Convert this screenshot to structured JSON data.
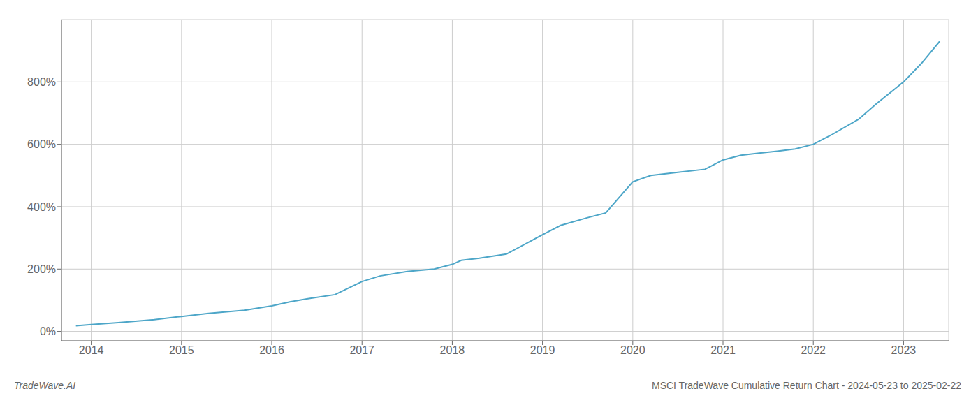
{
  "chart_data": {
    "type": "line",
    "title": "MSCI TradeWave Cumulative Return Chart - 2024-05-23 to 2025-02-22",
    "annotations": [
      "TradeWave.AI"
    ],
    "color": "#4da6c8",
    "x": [
      2013.83,
      2014.0,
      2014.3,
      2014.7,
      2015.0,
      2015.3,
      2015.7,
      2016.0,
      2016.2,
      2016.4,
      2016.7,
      2017.0,
      2017.2,
      2017.5,
      2017.8,
      2018.0,
      2018.1,
      2018.3,
      2018.6,
      2019.0,
      2019.2,
      2019.5,
      2019.7,
      2020.0,
      2020.2,
      2020.5,
      2020.8,
      2021.0,
      2021.2,
      2021.4,
      2021.6,
      2021.8,
      2022.0,
      2022.2,
      2022.5,
      2022.7,
      2023.0,
      2023.2,
      2023.4
    ],
    "values": [
      18,
      22,
      28,
      38,
      48,
      58,
      68,
      82,
      95,
      105,
      118,
      160,
      178,
      192,
      200,
      215,
      228,
      235,
      248,
      310,
      340,
      365,
      380,
      480,
      500,
      510,
      520,
      550,
      565,
      572,
      578,
      585,
      600,
      630,
      680,
      730,
      800,
      860,
      930
    ],
    "xlim": [
      2013.67,
      2023.5
    ],
    "xticks": [
      2014,
      2015,
      2016,
      2017,
      2018,
      2019,
      2020,
      2021,
      2022,
      2023
    ],
    "ylim": [
      -30,
      1000
    ],
    "yticks": [
      {
        "value": 0,
        "label": "0%"
      },
      {
        "value": 200,
        "label": "200%"
      },
      {
        "value": 400,
        "label": "400%"
      },
      {
        "value": 600,
        "label": "600%"
      },
      {
        "value": 800,
        "label": "800%"
      }
    ],
    "grid": true
  }
}
